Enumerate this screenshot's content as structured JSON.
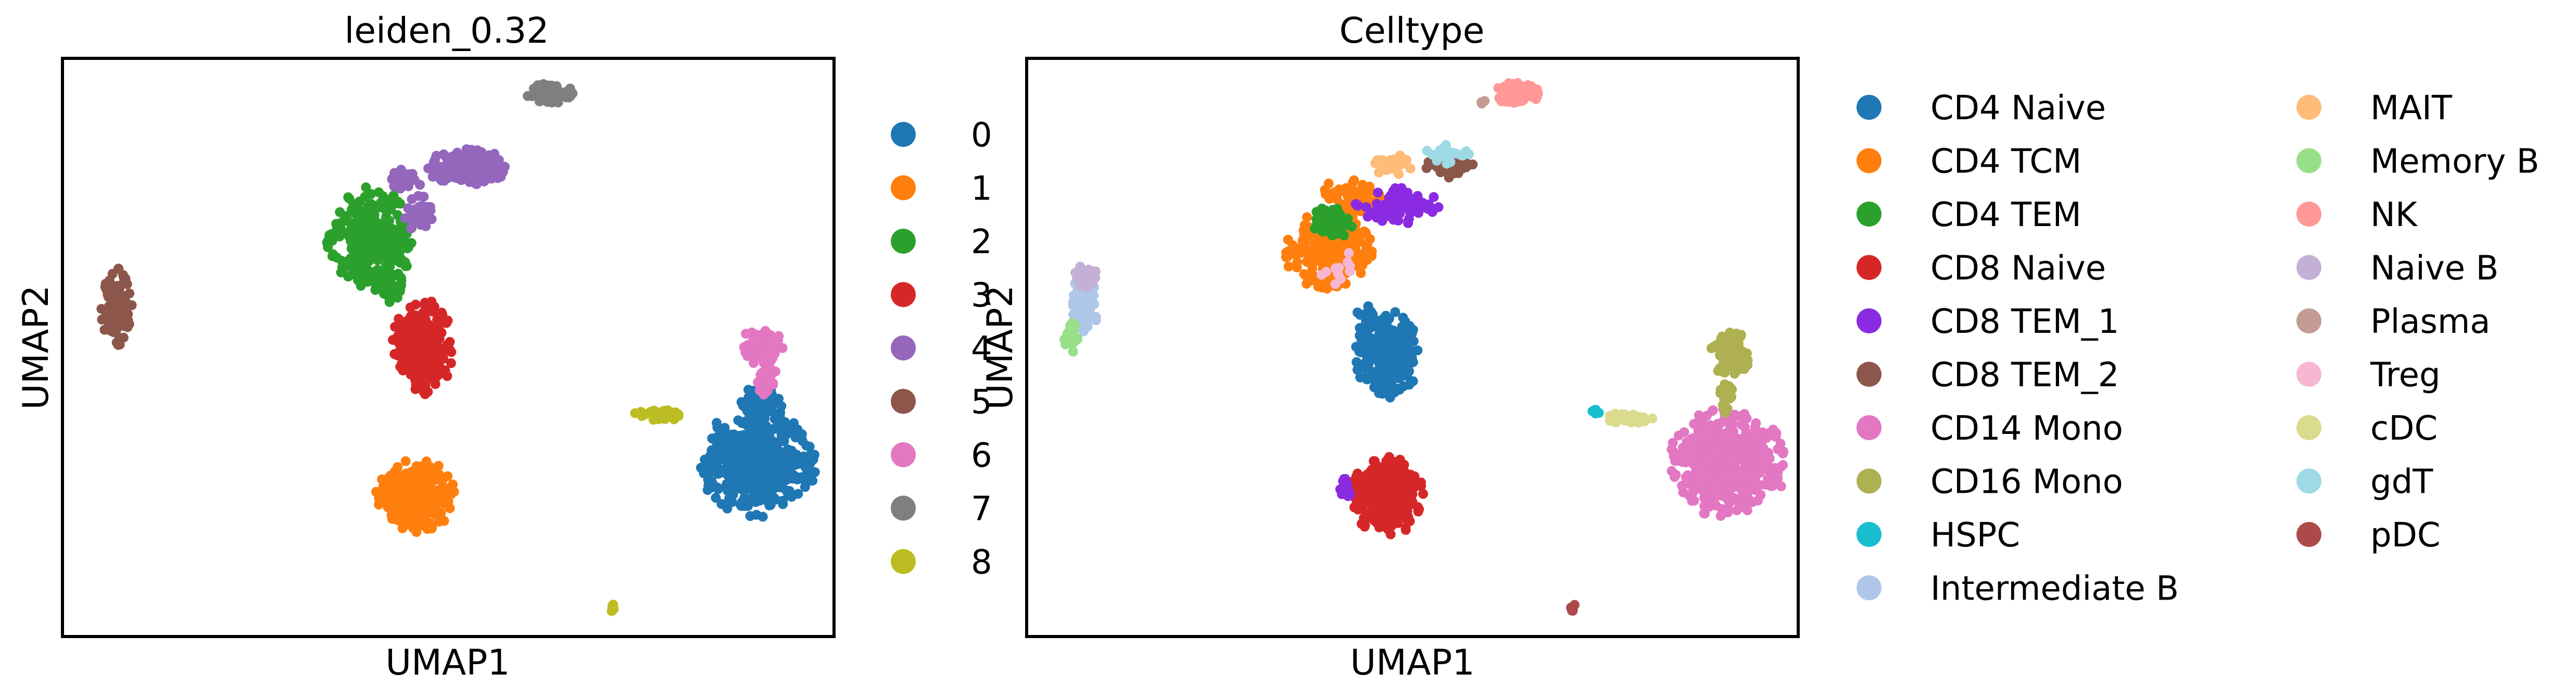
{
  "chart_data": [
    {
      "type": "scatter",
      "title": "leiden_0.32",
      "xlabel": "UMAP1",
      "ylabel": "UMAP2",
      "xlim": [
        0,
        12
      ],
      "ylim": [
        0,
        9
      ],
      "grid": false,
      "ticks": false,
      "legend_position": "right",
      "legend_columns": 1,
      "series": [
        {
          "name": "0",
          "color": "#1f77b4",
          "clusters": [
            {
              "cx": 10.8,
              "cy": 2.7,
              "rx": 0.8,
              "ry": 0.75,
              "n": 460
            },
            {
              "cx": 10.85,
              "cy": 3.6,
              "rx": 0.3,
              "ry": 0.28,
              "n": 70
            }
          ]
        },
        {
          "name": "1",
          "color": "#ff7f0e",
          "clusters": [
            {
              "cx": 5.5,
              "cy": 2.2,
              "rx": 0.55,
              "ry": 0.5,
              "n": 330
            }
          ]
        },
        {
          "name": "2",
          "color": "#2ca02c",
          "clusters": [
            {
              "cx": 4.8,
              "cy": 6.2,
              "rx": 0.6,
              "ry": 0.7,
              "n": 290
            },
            {
              "cx": 5.1,
              "cy": 5.45,
              "rx": 0.3,
              "ry": 0.22,
              "n": 40
            }
          ]
        },
        {
          "name": "3",
          "color": "#d62728",
          "clusters": [
            {
              "cx": 5.6,
              "cy": 4.5,
              "rx": 0.42,
              "ry": 0.65,
              "n": 270
            }
          ]
        },
        {
          "name": "4",
          "color": "#9467bd",
          "clusters": [
            {
              "cx": 6.3,
              "cy": 7.3,
              "rx": 0.55,
              "ry": 0.26,
              "n": 170
            },
            {
              "cx": 5.3,
              "cy": 7.1,
              "rx": 0.25,
              "ry": 0.15,
              "n": 45
            },
            {
              "cx": 5.55,
              "cy": 6.6,
              "rx": 0.2,
              "ry": 0.3,
              "n": 35
            }
          ]
        },
        {
          "name": "5",
          "color": "#8c564b",
          "clusters": [
            {
              "cx": 0.85,
              "cy": 5.1,
              "rx": 0.22,
              "ry": 0.6,
              "n": 100
            }
          ]
        },
        {
          "name": "6",
          "color": "#e377c2",
          "clusters": [
            {
              "cx": 10.9,
              "cy": 4.5,
              "rx": 0.3,
              "ry": 0.3,
              "n": 70
            },
            {
              "cx": 10.95,
              "cy": 4.05,
              "rx": 0.15,
              "ry": 0.3,
              "n": 30
            }
          ]
        },
        {
          "name": "7",
          "color": "#7f7f7f",
          "clusters": [
            {
              "cx": 7.6,
              "cy": 8.45,
              "rx": 0.35,
              "ry": 0.14,
              "n": 70
            }
          ]
        },
        {
          "name": "8",
          "color": "#bcbd22",
          "clusters": [
            {
              "cx": 9.3,
              "cy": 3.45,
              "rx": 0.42,
              "ry": 0.07,
              "n": 40
            },
            {
              "cx": 8.55,
              "cy": 0.45,
              "rx": 0.04,
              "ry": 0.05,
              "n": 6
            }
          ]
        }
      ]
    },
    {
      "type": "scatter",
      "title": "Celltype",
      "xlabel": "UMAP1",
      "ylabel": "UMAP2",
      "xlim": [
        0,
        12
      ],
      "ylim": [
        0,
        9
      ],
      "grid": false,
      "ticks": false,
      "legend_position": "right",
      "legend_columns": 2,
      "series": [
        {
          "name": "CD4 Naive",
          "color": "#1f77b4",
          "clusters": [
            {
              "cx": 5.6,
              "cy": 4.4,
              "rx": 0.45,
              "ry": 0.62,
              "n": 290
            },
            {
              "cx": 5.3,
              "cy": 5.0,
              "rx": 0.15,
              "ry": 0.15,
              "n": 15
            }
          ]
        },
        {
          "name": "CD4 TCM",
          "color": "#ff7f0e",
          "clusters": [
            {
              "cx": 4.7,
              "cy": 6.0,
              "rx": 0.6,
              "ry": 0.55,
              "n": 240
            },
            {
              "cx": 5.1,
              "cy": 6.85,
              "rx": 0.5,
              "ry": 0.25,
              "n": 60
            }
          ]
        },
        {
          "name": "CD4 TEM",
          "color": "#2ca02c",
          "clusters": [
            {
              "cx": 4.75,
              "cy": 6.45,
              "rx": 0.3,
              "ry": 0.22,
              "n": 55
            }
          ]
        },
        {
          "name": "CD8 Naive",
          "color": "#d62728",
          "clusters": [
            {
              "cx": 5.6,
              "cy": 2.2,
              "rx": 0.5,
              "ry": 0.55,
              "n": 330
            }
          ]
        },
        {
          "name": "CD8 TEM_1",
          "color": "#8a2be2",
          "clusters": [
            {
              "cx": 5.75,
              "cy": 6.7,
              "rx": 0.6,
              "ry": 0.25,
              "n": 90
            },
            {
              "cx": 4.95,
              "cy": 2.3,
              "rx": 0.1,
              "ry": 0.15,
              "n": 15
            }
          ]
        },
        {
          "name": "CD8 TEM_2",
          "color": "#8c564b",
          "clusters": [
            {
              "cx": 6.6,
              "cy": 7.35,
              "rx": 0.35,
              "ry": 0.2,
              "n": 70
            }
          ]
        },
        {
          "name": "CD14 Mono",
          "color": "#e377c2",
          "clusters": [
            {
              "cx": 10.9,
              "cy": 2.7,
              "rx": 0.8,
              "ry": 0.75,
              "n": 470
            }
          ]
        },
        {
          "name": "CD16 Mono",
          "color": "#aeb051",
          "clusters": [
            {
              "cx": 10.95,
              "cy": 4.4,
              "rx": 0.32,
              "ry": 0.35,
              "n": 85
            },
            {
              "cx": 10.85,
              "cy": 3.75,
              "rx": 0.15,
              "ry": 0.25,
              "n": 25
            }
          ]
        },
        {
          "name": "HSPC",
          "color": "#17becf",
          "clusters": [
            {
              "cx": 8.85,
              "cy": 3.5,
              "rx": 0.07,
              "ry": 0.05,
              "n": 8
            }
          ]
        },
        {
          "name": "Intermediate B",
          "color": "#aec7e8",
          "clusters": [
            {
              "cx": 0.9,
              "cy": 5.2,
              "rx": 0.2,
              "ry": 0.42,
              "n": 70
            }
          ]
        },
        {
          "name": "MAIT",
          "color": "#ffbb78",
          "clusters": [
            {
              "cx": 5.7,
              "cy": 7.35,
              "rx": 0.3,
              "ry": 0.15,
              "n": 25
            }
          ]
        },
        {
          "name": "Memory B",
          "color": "#98df8a",
          "clusters": [
            {
              "cx": 0.7,
              "cy": 4.65,
              "rx": 0.14,
              "ry": 0.25,
              "n": 30
            }
          ]
        },
        {
          "name": "NK",
          "color": "#ff9896",
          "clusters": [
            {
              "cx": 7.6,
              "cy": 8.45,
              "rx": 0.35,
              "ry": 0.15,
              "n": 75
            }
          ]
        },
        {
          "name": "Naive B",
          "color": "#c5b0d5",
          "clusters": [
            {
              "cx": 0.95,
              "cy": 5.6,
              "rx": 0.2,
              "ry": 0.18,
              "n": 25
            }
          ]
        },
        {
          "name": "Plasma",
          "color": "#c49c94",
          "clusters": [
            {
              "cx": 7.1,
              "cy": 8.3,
              "rx": 0.06,
              "ry": 0.05,
              "n": 3
            }
          ]
        },
        {
          "name": "Treg",
          "color": "#f7b6d2",
          "clusters": [
            {
              "cx": 4.9,
              "cy": 5.7,
              "rx": 0.3,
              "ry": 0.3,
              "n": 12
            }
          ]
        },
        {
          "name": "cDC",
          "color": "#dbdb8d",
          "clusters": [
            {
              "cx": 9.35,
              "cy": 3.4,
              "rx": 0.35,
              "ry": 0.08,
              "n": 35
            }
          ]
        },
        {
          "name": "gdT",
          "color": "#9edae5",
          "clusters": [
            {
              "cx": 6.5,
              "cy": 7.55,
              "rx": 0.35,
              "ry": 0.18,
              "n": 25
            }
          ]
        },
        {
          "name": "pDC",
          "color": "#ad494a",
          "clusters": [
            {
              "cx": 8.5,
              "cy": 0.45,
              "rx": 0.04,
              "ry": 0.05,
              "n": 6
            }
          ]
        }
      ]
    }
  ]
}
